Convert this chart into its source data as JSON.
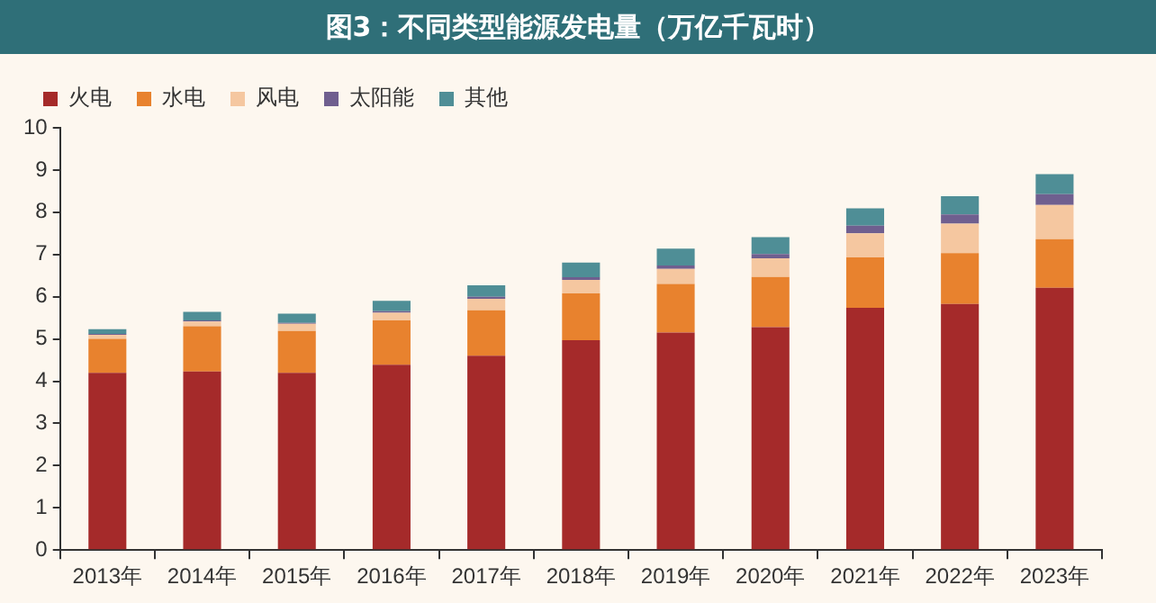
{
  "chart_data": {
    "type": "bar",
    "title": "图3：不同类型能源发电量（万亿千瓦时）",
    "stacked": true,
    "categories": [
      "2013年",
      "2014年",
      "2015年",
      "2016年",
      "2017年",
      "2018年",
      "2019年",
      "2020年",
      "2021年",
      "2022年",
      "2023年"
    ],
    "series": [
      {
        "name": "火电",
        "color": "#a52a2a",
        "values": [
          4.2,
          4.23,
          4.2,
          4.39,
          4.6,
          4.97,
          5.15,
          5.28,
          5.74,
          5.83,
          6.21
        ]
      },
      {
        "name": "水电",
        "color": "#e8822e",
        "values": [
          0.8,
          1.07,
          0.99,
          1.05,
          1.08,
          1.11,
          1.15,
          1.19,
          1.19,
          1.2,
          1.15
        ]
      },
      {
        "name": "风电",
        "color": "#f5c7a0",
        "values": [
          0.1,
          0.11,
          0.17,
          0.18,
          0.27,
          0.32,
          0.36,
          0.44,
          0.57,
          0.7,
          0.81
        ]
      },
      {
        "name": "太阳能",
        "color": "#6f5f8f",
        "values": [
          0.02,
          0.03,
          0.02,
          0.04,
          0.05,
          0.06,
          0.08,
          0.1,
          0.18,
          0.22,
          0.26
        ]
      },
      {
        "name": "其他",
        "color": "#4f8e96",
        "values": [
          0.11,
          0.2,
          0.22,
          0.24,
          0.27,
          0.35,
          0.4,
          0.4,
          0.41,
          0.43,
          0.47
        ]
      }
    ],
    "ylim": [
      0,
      10
    ],
    "yticks": [
      0,
      1,
      2,
      3,
      4,
      5,
      6,
      7,
      8,
      9,
      10
    ],
    "grid": false,
    "legend": "top left"
  }
}
